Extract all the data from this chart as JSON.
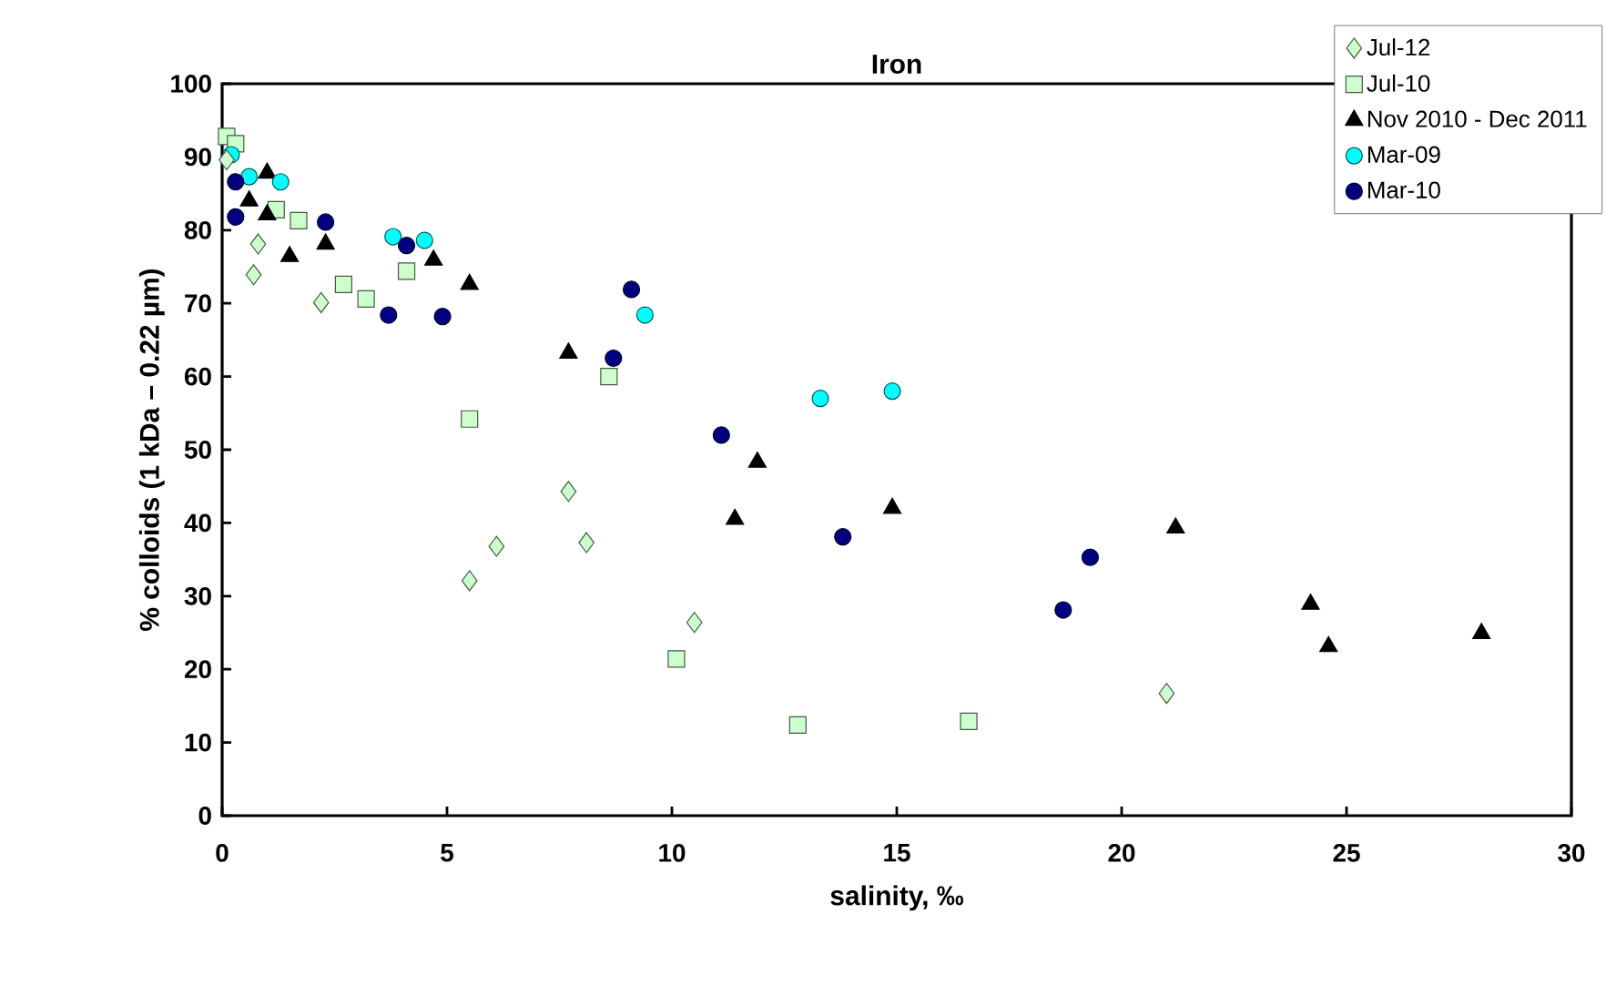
{
  "chart_data": {
    "type": "scatter",
    "title": "Iron",
    "xlabel": "salinity, ‰",
    "ylabel": "% colloids (1 kDa – 0.22 µm)",
    "xlim": [
      0,
      30
    ],
    "xticks": [
      0,
      5,
      10,
      15,
      20,
      25,
      30
    ],
    "ylim": [
      0,
      100
    ],
    "yticks": [
      0,
      10,
      20,
      30,
      40,
      50,
      60,
      70,
      80,
      90,
      100
    ],
    "grid": false,
    "legend": "top right",
    "series": [
      {
        "name": "Jul-12",
        "color": "#ccffcc",
        "marker": "diamond",
        "x": [
          0.1,
          0.8,
          0.7,
          2.2,
          5.5,
          6.1,
          7.7,
          8.1,
          10.5,
          21.0
        ],
        "values": [
          89.6,
          78.1,
          73.9,
          70.1,
          32.1,
          36.8,
          44.3,
          37.3,
          26.4,
          16.7
        ]
      },
      {
        "name": "Jul-10",
        "color": "#ccffcc",
        "marker": "square",
        "x": [
          0.1,
          0.3,
          1.2,
          1.7,
          2.7,
          3.2,
          4.1,
          5.5,
          8.6,
          10.1,
          12.8,
          16.6
        ],
        "values": [
          92.8,
          91.8,
          82.8,
          81.3,
          72.6,
          70.6,
          74.4,
          54.2,
          60.0,
          21.4,
          12.4,
          12.9
        ]
      },
      {
        "name": "Nov 2010 - Dec 2011",
        "color": "#000000",
        "marker": "triangle",
        "x": [
          1.0,
          0.6,
          1.0,
          1.5,
          2.3,
          4.7,
          5.5,
          7.7,
          11.4,
          11.9,
          14.9,
          21.2,
          24.2,
          24.6,
          28.0
        ],
        "values": [
          87.8,
          84.0,
          82.1,
          76.4,
          78.1,
          75.9,
          72.6,
          63.2,
          40.5,
          48.3,
          42.0,
          39.3,
          28.9,
          23.1,
          24.9
        ]
      },
      {
        "name": "Mar-09",
        "color": "#00ffff",
        "marker": "circle",
        "x": [
          0.2,
          0.6,
          1.3,
          3.8,
          4.5,
          9.4,
          13.3,
          14.9
        ],
        "values": [
          90.3,
          87.3,
          86.6,
          79.1,
          78.6,
          68.4,
          57.0,
          58.0
        ]
      },
      {
        "name": "Mar-10",
        "color": "#000080",
        "marker": "circle",
        "x": [
          0.3,
          0.3,
          2.3,
          3.7,
          4.1,
          4.9,
          9.1,
          8.7,
          11.1,
          13.8,
          18.7,
          19.3
        ],
        "values": [
          86.6,
          81.8,
          81.1,
          68.4,
          77.9,
          68.2,
          71.9,
          62.5,
          52.0,
          38.1,
          28.1,
          35.3
        ]
      }
    ]
  }
}
